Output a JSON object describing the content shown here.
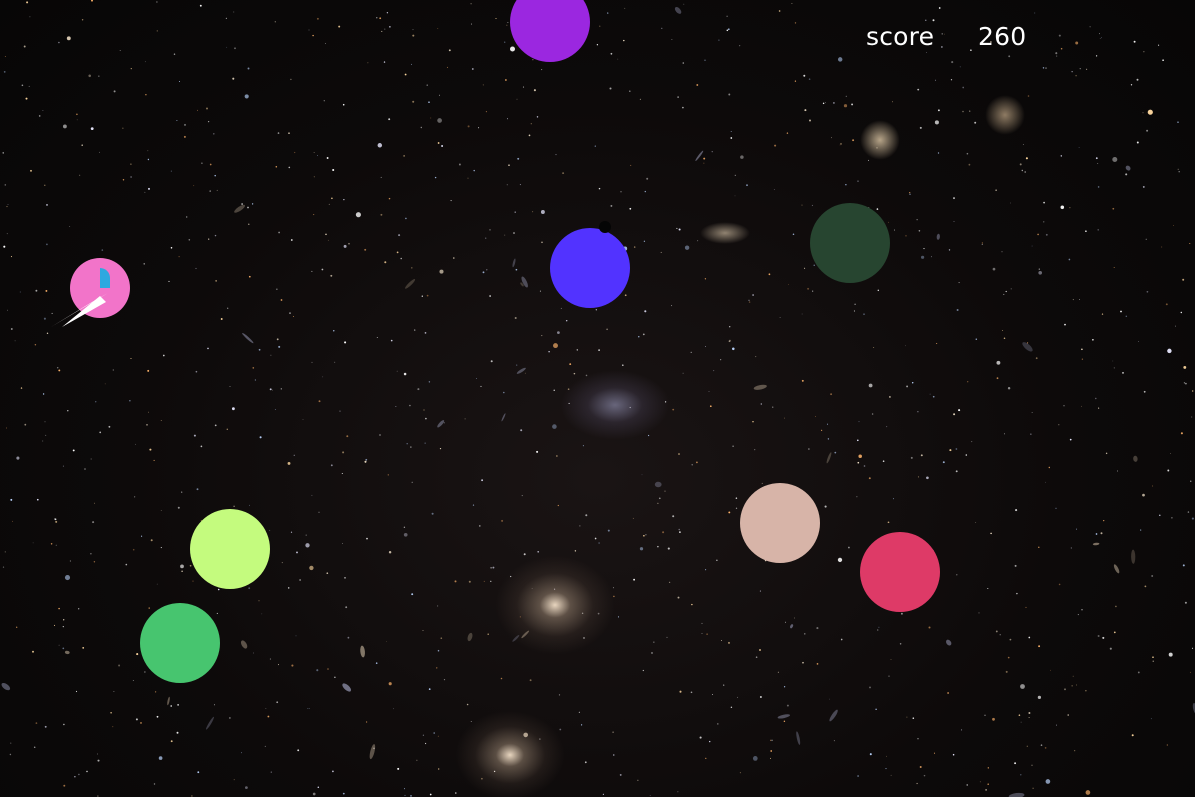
{
  "hud": {
    "score_label": "score",
    "score_value": "260"
  },
  "background": {
    "description_icon": "galaxy-starfield"
  },
  "player": {
    "body_color": "#f274c9",
    "cockpit_color": "#2ea8e0",
    "trail_color": "#ffffff"
  },
  "orbs": [
    {
      "id": "purple",
      "color": "#9b27e0"
    },
    {
      "id": "blue",
      "color": "#5233ff"
    },
    {
      "id": "dark-green",
      "color": "#274530"
    },
    {
      "id": "lime",
      "color": "#c4fb7e"
    },
    {
      "id": "green",
      "color": "#47c56f"
    },
    {
      "id": "beige",
      "color": "#d7b4a8"
    },
    {
      "id": "crimson",
      "color": "#de3a67"
    }
  ],
  "projectile": {
    "color": "#050505"
  }
}
